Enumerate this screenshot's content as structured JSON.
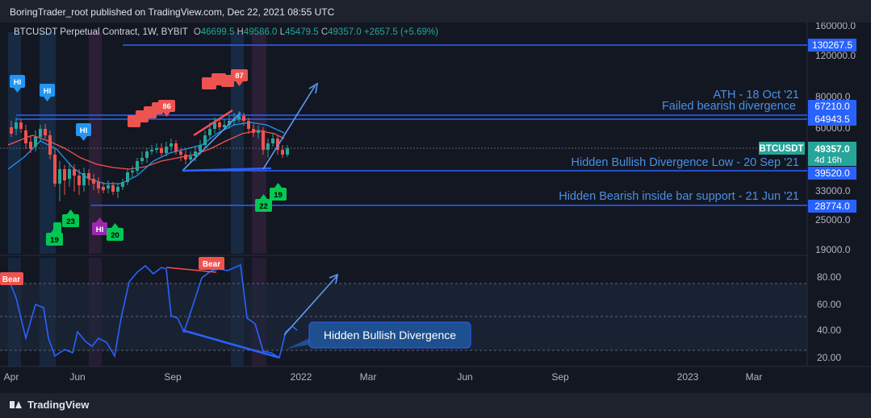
{
  "header": {
    "publisher_text": "BoringTrader_root published on TradingView.com, Dec 22, 2021 08:55 UTC"
  },
  "legend": {
    "symbol": "BTCUSDT Perpetual Contract, 1W, BYBIT",
    "o_label": "O",
    "o_value": "46699.5",
    "h_label": "H",
    "h_value": "49586.0",
    "l_label": "L",
    "l_value": "45479.5",
    "c_label": "C",
    "c_value": "49357.0",
    "change": "+2657.5 (+5.69%)"
  },
  "price_axis": [
    "160000.0",
    "120000.0",
    "80000.0",
    "60000.0",
    "33000.0",
    "25000.0",
    "19000.0"
  ],
  "price_labels": [
    {
      "text": "130267.5",
      "color": "#2962ff"
    },
    {
      "text": "67210.0",
      "color": "#2962ff"
    },
    {
      "text": "64943.5",
      "color": "#2962ff"
    },
    {
      "text": "39520.0",
      "color": "#2962ff"
    },
    {
      "text": "28774.0",
      "color": "#2962ff"
    }
  ],
  "current_price": {
    "ticker": "BTCUSDT",
    "price": "49357.0",
    "countdown": "4d 16h"
  },
  "annotations": {
    "ath": "ATH - 18 Oct '21",
    "failed": "Failed bearish divergence",
    "hidden_bull_low": "Hidden Bullish Divergence Low - 20 Sep '21",
    "hidden_bear": "Hidden Bearish inside bar support - 21 Jun '21",
    "callout": "Hidden Bullish Divergence"
  },
  "osc_axis": [
    "80.00",
    "60.00",
    "40.00",
    "20.00"
  ],
  "time_axis": [
    "Apr",
    "Jun",
    "Sep",
    "2022",
    "Mar",
    "Jun",
    "Sep",
    "2023",
    "Mar"
  ],
  "markers": {
    "hi": "HI",
    "bear": "Bear",
    "nums_red": [
      "86",
      "87"
    ],
    "nums_green": [
      "19",
      "23",
      "20",
      "22",
      "19"
    ]
  },
  "footer": {
    "brand": "TradingView"
  },
  "colors": {
    "bull": "#26a69a",
    "bear": "#ef5350",
    "accent": "#2962ff",
    "osc": "#2962ff",
    "arrow": "#5b9cf6"
  },
  "chart_data": {
    "type": "line",
    "series": [
      {
        "name": "BTCUSDT",
        "values": [
          49357.0
        ]
      }
    ]
  }
}
